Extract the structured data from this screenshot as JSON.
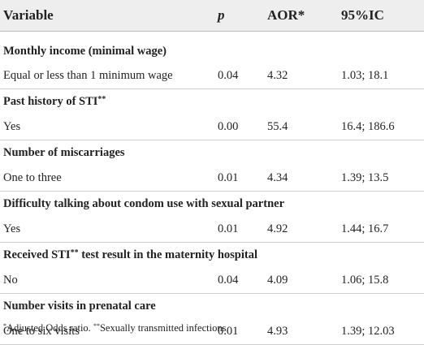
{
  "table": {
    "headers": {
      "variable": "Variable",
      "p": "p",
      "aor": "AOR*",
      "ci": "95%IC"
    },
    "groups": [
      {
        "title": "Monthly income (minimal wage)",
        "title_sup": "",
        "row": {
          "label": "Equal or less than 1 minimum wage",
          "p": "0.04",
          "aor": "4.32",
          "ci": "1.03; 18.1"
        }
      },
      {
        "title": "Past history of STI",
        "title_sup": "**",
        "row": {
          "label": "Yes",
          "p": "0.00",
          "aor": "55.4",
          "ci": "16.4; 186.6"
        }
      },
      {
        "title": "Number of miscarriages",
        "title_sup": "",
        "row": {
          "label": "One to three",
          "p": "0.01",
          "aor": "4.34",
          "ci": "1.39; 13.5"
        }
      },
      {
        "title": "Difficulty talking about condom use with sexual partner",
        "title_sup": "",
        "row": {
          "label": "Yes",
          "p": "0.01",
          "aor": "4.92",
          "ci": "1.44; 16.7"
        }
      },
      {
        "title": "Received STI",
        "title_sup": "**",
        "title_suffix": " test result in the maternity hospital",
        "row": {
          "label": "No",
          "p": "0.04",
          "aor": "4.09",
          "ci": "1.06; 15.8"
        }
      },
      {
        "title": "Number visits in prenatal care",
        "title_sup": "",
        "row": {
          "label": "One to six visits",
          "p": "0.01",
          "aor": "4.93",
          "ci": "1.39; 12.03"
        }
      }
    ]
  },
  "footnote": {
    "mark1": "*",
    "text1": "Adjusted Odds ratio.",
    "mark2": "**",
    "text2": "Sexually transmitted infections."
  }
}
